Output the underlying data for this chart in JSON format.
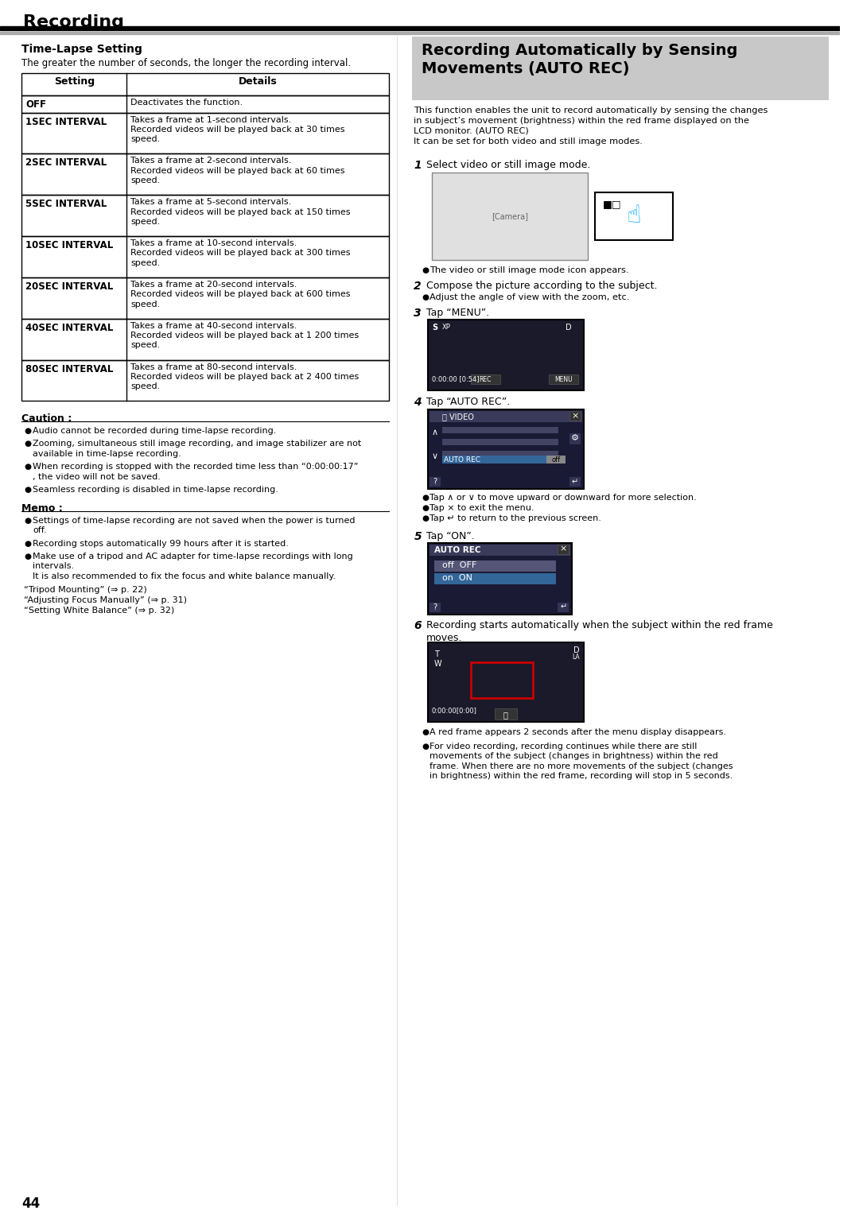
{
  "page_number": "44",
  "bg_color": "#ffffff",
  "header_title": "Recording",
  "header_bar_color": "#000000",
  "header_bar2_color": "#888888",
  "section_title_left": "Time-Lapse Setting",
  "section_desc_left": "The greater the number of seconds, the longer the recording interval.",
  "table_header": [
    "Setting",
    "Details"
  ],
  "table_rows": [
    [
      "OFF",
      "Deactivates the function."
    ],
    [
      "1SEC INTERVAL",
      "Takes a frame at 1-second intervals.\nRecorded videos will be played back at 30 times\nspeed."
    ],
    [
      "2SEC INTERVAL",
      "Takes a frame at 2-second intervals.\nRecorded videos will be played back at 60 times\nspeed."
    ],
    [
      "5SEC INTERVAL",
      "Takes a frame at 5-second intervals.\nRecorded videos will be played back at 150 times\nspeed."
    ],
    [
      "10SEC INTERVAL",
      "Takes a frame at 10-second intervals.\nRecorded videos will be played back at 300 times\nspeed."
    ],
    [
      "20SEC INTERVAL",
      "Takes a frame at 20-second intervals.\nRecorded videos will be played back at 600 times\nspeed."
    ],
    [
      "40SEC INTERVAL",
      "Takes a frame at 40-second intervals.\nRecorded videos will be played back at 1 200 times\nspeed."
    ],
    [
      "80SEC INTERVAL",
      "Takes a frame at 80-second intervals.\nRecorded videos will be played back at 2 400 times\nspeed."
    ]
  ],
  "caution_title": "Caution :",
  "caution_items": [
    "Audio cannot be recorded during time-lapse recording.",
    "Zooming, simultaneous still image recording, and image stabilizer are not\navailable in time-lapse recording.",
    "When recording is stopped with the recorded time less than “0:00:00:17”\n, the video will not be saved.",
    "Seamless recording is disabled in time-lapse recording."
  ],
  "memo_title": "Memo :",
  "memo_items": [
    "Settings of time-lapse recording are not saved when the power is turned\noff.",
    "Recording stops automatically 99 hours after it is started.",
    "Make use of a tripod and AC adapter for time-lapse recordings with long\nintervals.\nIt is also recommended to fix the focus and white balance manually."
  ],
  "memo_links": [
    "“Tripod Mounting” (⇒ p. 22)",
    "“Adjusting Focus Manually” (⇒ p. 31)",
    "“Setting White Balance” (⇒ p. 32)"
  ],
  "right_title": "Recording Automatically by Sensing\nMovements (AUTO REC)",
  "right_title_bg": "#c8c8c8",
  "right_intro": "This function enables the unit to record automatically by sensing the changes\nin subject’s movement (brightness) within the red frame displayed on the\nLCD monitor. (AUTO REC)\nIt can be set for both video and still image modes.",
  "steps": [
    {
      "num": "1",
      "text": "Select video or still image mode."
    },
    {
      "num": "2",
      "text": "Compose the picture according to the subject."
    },
    {
      "num": "3",
      "text": "Tap “MENU”."
    },
    {
      "num": "4",
      "text": "Tap “AUTO REC”."
    },
    {
      "num": "5",
      "text": "Tap “ON”."
    },
    {
      "num": "6",
      "text": "Recording starts automatically when the subject within the red frame\nmoves."
    }
  ],
  "step1_bullets": [
    "The video or still image mode icon appears."
  ],
  "step2_bullets": [
    "Compose the picture according to the subject.",
    "Adjust the angle of view with the zoom, etc."
  ],
  "step4_bullets": [
    "Tap ∧ or ∨ to move upward or downward for more selection.",
    "Tap × to exit the menu.",
    "Tap ↵ to return to the previous screen."
  ],
  "step6_bullets": [
    "A red frame appears 2 seconds after the menu display disappears.",
    "For video recording, recording continues while there are still\nmovements of the subject (changes in brightness) within the red\nframe. When there are no more movements of the subject (changes\nin brightness) within the red frame, recording will stop in 5 seconds."
  ],
  "screen_color": "#2a2a2a",
  "screen_border": "#000000",
  "menu_screen_color": "#1a1a3a",
  "autorec_menu_color": "#1a1a3a"
}
